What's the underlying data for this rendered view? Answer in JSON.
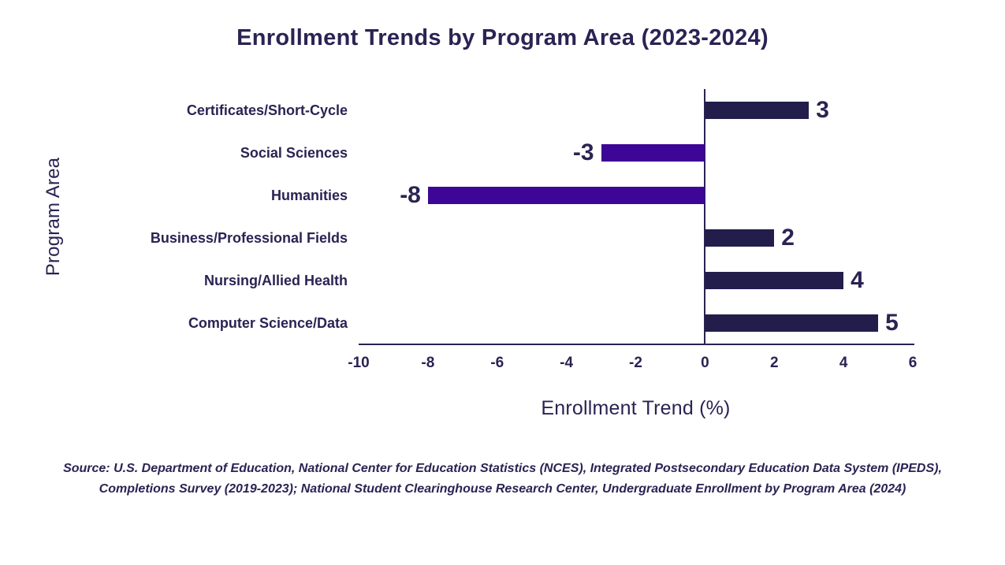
{
  "title": "Enrollment Trends by Program Area (2023-2024)",
  "colors": {
    "positive_bar": "#221d4a",
    "negative_bar": "#3d0697",
    "text": "#2a2353",
    "axis": "#2a2353"
  },
  "chart_data": {
    "type": "bar",
    "orientation": "horizontal",
    "title": "Enrollment Trends by Program Area (2023-2024)",
    "categories": [
      "Certificates/Short-Cycle",
      "Social Sciences",
      "Humanities",
      "Business/Professional Fields",
      "Nursing/Allied Health",
      "Computer Science/Data"
    ],
    "values": [
      3,
      -3,
      -8,
      2,
      4,
      5
    ],
    "value_labels": [
      "3",
      "-3",
      "-8",
      "2",
      "4",
      "5"
    ],
    "xlabel": "Enrollment Trend (%)",
    "ylabel": "Program Area",
    "xlim": [
      -10,
      6
    ],
    "xticks": [
      -10,
      -8,
      -6,
      -4,
      -2,
      0,
      2,
      4,
      6
    ],
    "xtick_labels": [
      "-10",
      "-8",
      "-6",
      "-4",
      "-2",
      "0",
      "2",
      "4",
      "6"
    ],
    "grid": false,
    "legend": "none"
  },
  "source": {
    "line1": "Source: U.S. Department of Education, National Center for Education Statistics (NCES), Integrated Postsecondary Education Data System (IPEDS),",
    "line2": "Completions Survey (2019-2023); National Student Clearinghouse Research Center, Undergraduate Enrollment by Program Area (2024)"
  }
}
